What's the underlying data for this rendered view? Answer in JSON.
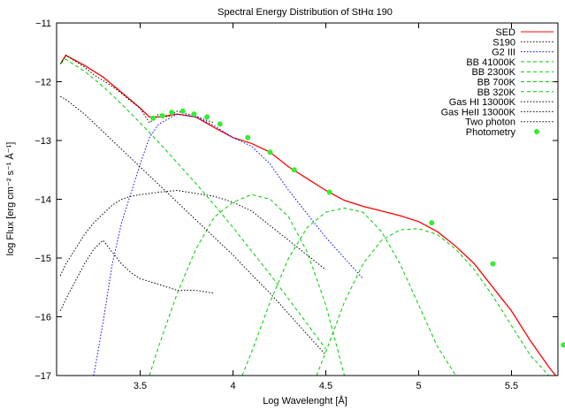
{
  "chart_data": {
    "type": "line",
    "title": "Spectral Energy Distribution of StHα 190",
    "xlabel": "Log Wavelenght [Å]",
    "ylabel": "log Flux [erg cm⁻² s⁻¹ Å⁻¹]",
    "xlim": [
      3.05,
      5.75
    ],
    "ylim": [
      -17,
      -11
    ],
    "xticks": [
      "3.5",
      "4",
      "4.5",
      "5",
      "5.5"
    ],
    "yticks": [
      "−11",
      "−12",
      "−13",
      "−14",
      "−15",
      "−16",
      "−17"
    ],
    "grid": false,
    "legend_position": "top-right",
    "series": [
      {
        "name": "SED",
        "color": "#ff0000",
        "style": "solid",
        "x": [
          3.07,
          3.1,
          3.2,
          3.3,
          3.4,
          3.5,
          3.55,
          3.6,
          3.7,
          3.8,
          3.9,
          4.0,
          4.1,
          4.2,
          4.3,
          4.4,
          4.5,
          4.6,
          4.7,
          4.8,
          4.9,
          5.0,
          5.1,
          5.2,
          5.3,
          5.4,
          5.5,
          5.6,
          5.7,
          5.75
        ],
        "y": [
          -11.7,
          -11.55,
          -11.72,
          -11.92,
          -12.18,
          -12.45,
          -12.6,
          -12.6,
          -12.55,
          -12.6,
          -12.78,
          -12.95,
          -13.05,
          -13.2,
          -13.45,
          -13.65,
          -13.85,
          -14.02,
          -14.12,
          -14.2,
          -14.28,
          -14.38,
          -14.55,
          -14.8,
          -15.1,
          -15.5,
          -15.9,
          -16.4,
          -16.85,
          -17.05
        ]
      },
      {
        "name": "S190",
        "color": "#000000",
        "style": "dotted",
        "x": [
          3.07,
          3.1,
          3.15,
          3.2,
          3.25,
          3.3,
          3.35,
          3.4,
          3.45,
          3.5,
          3.55,
          3.6,
          3.65,
          3.7,
          3.75,
          3.8,
          3.85,
          3.9
        ],
        "y": [
          -11.7,
          -11.55,
          -11.65,
          -11.75,
          -11.88,
          -11.98,
          -12.08,
          -12.2,
          -12.33,
          -12.45,
          -12.7,
          -12.55,
          -12.6,
          -12.5,
          -12.55,
          -12.58,
          -12.65,
          -12.7
        ]
      },
      {
        "name": "G2 III",
        "color": "#0000ff",
        "style": "dotted",
        "x": [
          3.25,
          3.3,
          3.35,
          3.4,
          3.45,
          3.5,
          3.55,
          3.6,
          3.7,
          3.8,
          3.9,
          4.0,
          4.1,
          4.2,
          4.3,
          4.4,
          4.5,
          4.6,
          4.7
        ],
        "y": [
          -17.0,
          -16.1,
          -15.1,
          -14.4,
          -13.9,
          -13.4,
          -12.95,
          -12.72,
          -12.55,
          -12.6,
          -12.75,
          -12.95,
          -13.1,
          -13.4,
          -13.85,
          -14.25,
          -14.65,
          -15.0,
          -15.35
        ]
      },
      {
        "name": "BB 41000K",
        "color": "#00cc00",
        "style": "dashed",
        "x": [
          3.07,
          3.1,
          3.2,
          3.3,
          3.4,
          3.5,
          3.6,
          3.7,
          3.8,
          3.9,
          4.0,
          4.1,
          4.2,
          4.3,
          4.4,
          4.5
        ],
        "y": [
          -11.7,
          -11.62,
          -11.82,
          -12.08,
          -12.38,
          -12.7,
          -13.03,
          -13.38,
          -13.73,
          -14.1,
          -14.48,
          -14.88,
          -15.28,
          -15.7,
          -16.12,
          -16.55
        ]
      },
      {
        "name": "BB 2300K",
        "color": "#00cc00",
        "style": "dashed",
        "x": [
          3.55,
          3.6,
          3.7,
          3.8,
          3.9,
          4.0,
          4.1,
          4.2,
          4.3,
          4.4,
          4.5,
          4.6
        ],
        "y": [
          -17.0,
          -16.5,
          -15.6,
          -14.85,
          -14.3,
          -14.05,
          -13.92,
          -14.0,
          -14.3,
          -14.9,
          -15.8,
          -17.0
        ]
      },
      {
        "name": "BB 700K",
        "color": "#00cc00",
        "style": "dashed",
        "x": [
          4.05,
          4.1,
          4.2,
          4.3,
          4.4,
          4.5,
          4.6,
          4.7,
          4.8,
          4.9,
          5.0,
          5.1,
          5.2
        ],
        "y": [
          -17.0,
          -16.6,
          -15.75,
          -15.0,
          -14.48,
          -14.22,
          -14.15,
          -14.22,
          -14.55,
          -15.1,
          -15.8,
          -16.5,
          -17.0
        ]
      },
      {
        "name": "BB 320K",
        "color": "#00cc00",
        "style": "dashed",
        "x": [
          4.45,
          4.5,
          4.6,
          4.7,
          4.8,
          4.9,
          5.0,
          5.1,
          5.2,
          5.3,
          5.4,
          5.5,
          5.6,
          5.7
        ],
        "y": [
          -17.0,
          -16.6,
          -15.75,
          -15.1,
          -14.7,
          -14.52,
          -14.5,
          -14.6,
          -14.85,
          -15.2,
          -15.65,
          -16.15,
          -16.65,
          -17.0
        ]
      },
      {
        "name": "Gas HI 13000K",
        "color": "#000000",
        "style": "dotted",
        "x": [
          3.07,
          3.1,
          3.15,
          3.2,
          3.25,
          3.3,
          3.35,
          3.4,
          3.45,
          3.5,
          3.55,
          3.6,
          3.7,
          3.8,
          3.9,
          4.0,
          4.1,
          4.2,
          4.3,
          4.4,
          4.5
        ],
        "y": [
          -15.3,
          -15.1,
          -14.85,
          -14.6,
          -14.4,
          -14.25,
          -14.1,
          -14.0,
          -13.95,
          -13.92,
          -13.9,
          -13.88,
          -13.85,
          -13.9,
          -13.95,
          -14.05,
          -14.2,
          -14.45,
          -14.7,
          -14.95,
          -15.2
        ]
      },
      {
        "name": "Gas HeII 13000K",
        "color": "#000000",
        "style": "dotted",
        "x": [
          3.07,
          3.1,
          3.15,
          3.2,
          3.25,
          3.3,
          3.35,
          3.4,
          3.45,
          3.5,
          3.6,
          3.7,
          3.8,
          3.9
        ],
        "y": [
          -15.9,
          -15.7,
          -15.4,
          -15.1,
          -14.85,
          -14.7,
          -14.9,
          -15.1,
          -15.25,
          -15.35,
          -15.45,
          -15.55,
          -15.55,
          -15.6
        ]
      },
      {
        "name": "Two photon",
        "color": "#000000",
        "style": "dotted",
        "x": [
          3.07,
          3.1,
          3.2,
          3.3,
          3.4,
          3.5,
          3.6,
          3.7,
          3.8,
          3.9,
          4.0,
          4.1,
          4.2,
          4.3,
          4.4,
          4.5
        ],
        "y": [
          -12.25,
          -12.3,
          -12.55,
          -12.85,
          -13.15,
          -13.45,
          -13.75,
          -14.05,
          -14.35,
          -14.65,
          -14.95,
          -15.28,
          -15.6,
          -15.95,
          -16.3,
          -16.65
        ]
      }
    ],
    "photometry": {
      "name": "Photometry",
      "color": "#33ee33",
      "x": [
        3.57,
        3.62,
        3.67,
        3.73,
        3.79,
        3.86,
        3.93,
        4.08,
        4.2,
        4.33,
        4.52,
        5.07,
        5.4,
        5.78
      ],
      "y": [
        -12.62,
        -12.58,
        -12.52,
        -12.5,
        -12.55,
        -12.6,
        -12.72,
        -12.95,
        -13.2,
        -13.5,
        -13.88,
        -14.4,
        -15.1,
        -16.48
      ]
    }
  }
}
